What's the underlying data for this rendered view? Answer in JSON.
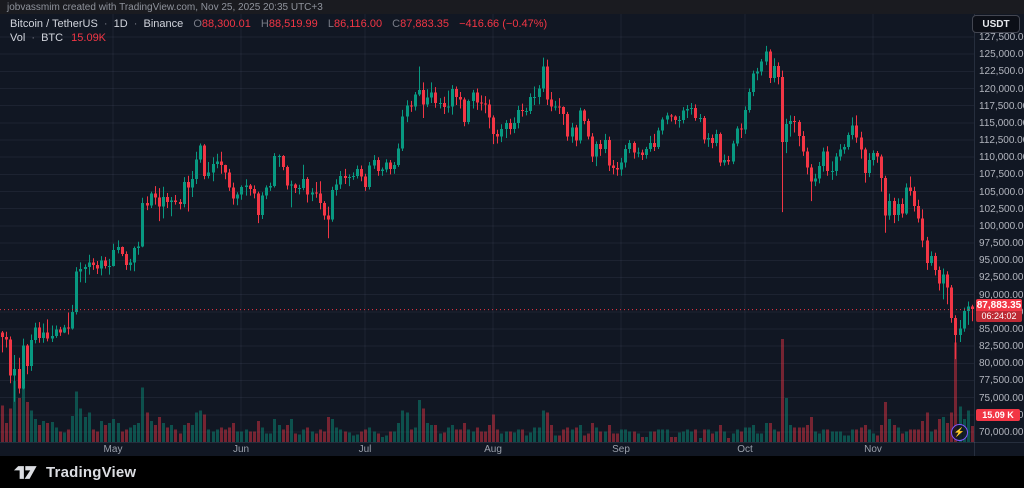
{
  "watermark": {
    "text": "jobvassmim created with TradingView.com, Nov 25, 2025 20:35 UTC+3"
  },
  "header": {
    "symbol": "Bitcoin / TetherUS",
    "dot": "·",
    "interval": "1D",
    "exchange": "Binance",
    "o_label": "O",
    "open": "88,300.01",
    "h_label": "H",
    "high": "88,519.99",
    "l_label": "L",
    "low": "86,116.00",
    "c_label": "C",
    "close": "87,883.35",
    "change": "−416.66 (−0.47%)",
    "vol_label": "Vol",
    "vol_unit": "BTC",
    "vol_value": "15.09K"
  },
  "axis": {
    "currency_button": "USDT",
    "price_labels": [
      "127,500.00",
      "125,000.00",
      "122,500.00",
      "120,000.00",
      "117,500.00",
      "115,000.00",
      "112,500.00",
      "110,000.00",
      "107,500.00",
      "105,000.00",
      "102,500.00",
      "100,000.00",
      "97,500.00",
      "95,000.00",
      "92,500.00",
      "90,000.00",
      "87,500.00",
      "85,000.00",
      "82,500.00",
      "80,000.00",
      "77,500.00",
      "75,000.00",
      "72,500.00",
      "70,000.00"
    ],
    "price_max": 127500,
    "price_min": 70000,
    "price_step": 2500,
    "last_price_label": "87,883.35",
    "countdown": "06:24:02",
    "volume_badge": "15.09 K"
  },
  "time_axis": {
    "months": [
      {
        "label": "May",
        "index": 27
      },
      {
        "label": "Jun",
        "index": 58
      },
      {
        "label": "Jul",
        "index": 88
      },
      {
        "label": "Aug",
        "index": 119
      },
      {
        "label": "Sep",
        "index": 150
      },
      {
        "label": "Oct",
        "index": 180
      },
      {
        "label": "Nov",
        "index": 211
      }
    ]
  },
  "footer": {
    "logo_text": "TradingView"
  },
  "icons": {
    "lightning": "⚡"
  },
  "colors": {
    "background": "#111723",
    "watermark_bar": "#1a1b20",
    "footer": "#000000",
    "up": "#089981",
    "down": "#f23645",
    "vol_up": "rgba(8,153,129,0.45)",
    "vol_down": "rgba(242,54,69,0.45)",
    "grid": "rgba(150,165,200,0.09)",
    "axis_border": "rgba(150,165,200,0.16)",
    "axis_text": "#b2b5be",
    "badge": "#f23645"
  },
  "chart_data": {
    "type": "candlestick",
    "title": "Bitcoin / TetherUS · 1D · Binance",
    "symbol": "BTCUSDT",
    "timeframe": "1D",
    "start_date": "2025-04-04",
    "end_date": "2025-11-25",
    "unit": "thousand USDT",
    "volume_unit": "K BTC",
    "price_axis_range": [
      70.0,
      127.5
    ],
    "last_price": 87.88335,
    "last_change": -0.41666,
    "last_change_pct": -0.47,
    "columns": [
      "close",
      "high",
      "low",
      "volume_kBTC"
    ],
    "open_equals_prev_close": true,
    "first_open": 84.5,
    "candles": [
      [
        83.8,
        84.7,
        81.6,
        35
      ],
      [
        83.5,
        84.6,
        82.3,
        18
      ],
      [
        78.2,
        83.9,
        77.1,
        32
      ],
      [
        79.2,
        81.2,
        74.4,
        58
      ],
      [
        76.3,
        80.8,
        75.6,
        42
      ],
      [
        82.6,
        83.6,
        76.2,
        55
      ],
      [
        79.6,
        82.8,
        78.4,
        38
      ],
      [
        83.4,
        84.2,
        78.9,
        30
      ],
      [
        85.2,
        85.9,
        82.9,
        22
      ],
      [
        83.7,
        86.0,
        83.0,
        16
      ],
      [
        84.5,
        85.8,
        83.0,
        20
      ],
      [
        83.6,
        86.4,
        83.2,
        18
      ],
      [
        84.0,
        85.5,
        83.1,
        19
      ],
      [
        84.9,
        85.5,
        83.7,
        14
      ],
      [
        84.5,
        85.3,
        84.0,
        10
      ],
      [
        85.2,
        85.6,
        84.4,
        9
      ],
      [
        85.1,
        87.4,
        84.2,
        12
      ],
      [
        87.5,
        88.5,
        84.9,
        25
      ],
      [
        93.4,
        94.0,
        87.1,
        48
      ],
      [
        93.7,
        94.7,
        91.8,
        32
      ],
      [
        94.0,
        94.4,
        91.7,
        24
      ],
      [
        94.7,
        95.8,
        92.9,
        28
      ],
      [
        94.3,
        95.3,
        93.6,
        12
      ],
      [
        93.8,
        94.9,
        93.0,
        10
      ],
      [
        95.0,
        95.6,
        92.8,
        20
      ],
      [
        94.2,
        95.5,
        93.8,
        16
      ],
      [
        94.2,
        95.2,
        92.9,
        18
      ],
      [
        96.5,
        97.4,
        94.1,
        22
      ],
      [
        96.9,
        97.9,
        96.0,
        18
      ],
      [
        95.9,
        97.0,
        95.6,
        10
      ],
      [
        94.3,
        96.3,
        93.6,
        12
      ],
      [
        94.7,
        95.2,
        93.5,
        14
      ],
      [
        96.8,
        97.0,
        93.4,
        16
      ],
      [
        97.0,
        97.7,
        95.8,
        18
      ],
      [
        103.3,
        104.1,
        96.9,
        52
      ],
      [
        103.0,
        104.3,
        102.3,
        28
      ],
      [
        104.7,
        105.0,
        102.6,
        20
      ],
      [
        104.1,
        105.8,
        103.1,
        16
      ],
      [
        102.8,
        105.5,
        100.7,
        24
      ],
      [
        104.2,
        105.7,
        101.1,
        18
      ],
      [
        103.5,
        104.8,
        102.6,
        14
      ],
      [
        103.7,
        104.2,
        101.4,
        16
      ],
      [
        103.5,
        104.5,
        103.1,
        12
      ],
      [
        103.2,
        103.9,
        102.4,
        8
      ],
      [
        106.4,
        107.1,
        102.7,
        16
      ],
      [
        105.6,
        107.3,
        102.1,
        18
      ],
      [
        106.8,
        108.0,
        104.2,
        16
      ],
      [
        109.7,
        110.8,
        106.1,
        28
      ],
      [
        111.7,
        112.0,
        109.2,
        30
      ],
      [
        107.3,
        111.9,
        106.8,
        26
      ],
      [
        107.8,
        109.3,
        106.9,
        12
      ],
      [
        109.0,
        110.0,
        106.5,
        10
      ],
      [
        109.4,
        110.5,
        108.4,
        12
      ],
      [
        108.9,
        110.8,
        107.6,
        14
      ],
      [
        107.8,
        108.9,
        106.8,
        12
      ],
      [
        105.6,
        108.3,
        105.1,
        14
      ],
      [
        104.0,
        106.3,
        103.1,
        18
      ],
      [
        104.6,
        104.9,
        103.0,
        10
      ],
      [
        105.7,
        105.9,
        103.8,
        10
      ],
      [
        105.9,
        106.8,
        104.4,
        12
      ],
      [
        105.4,
        106.1,
        104.4,
        10
      ],
      [
        104.7,
        105.9,
        104.0,
        10
      ],
      [
        101.6,
        105.0,
        100.4,
        20
      ],
      [
        104.4,
        104.9,
        101.0,
        14
      ],
      [
        105.6,
        105.9,
        103.9,
        8
      ],
      [
        105.8,
        106.3,
        105.1,
        8
      ],
      [
        110.2,
        110.6,
        105.6,
        22
      ],
      [
        110.2,
        110.4,
        108.6,
        16
      ],
      [
        108.6,
        110.3,
        108.1,
        12
      ],
      [
        105.9,
        108.8,
        105.3,
        16
      ],
      [
        106.0,
        106.6,
        102.7,
        22
      ],
      [
        105.5,
        106.2,
        104.8,
        8
      ],
      [
        105.5,
        106.0,
        104.6,
        7
      ],
      [
        106.8,
        108.9,
        105.2,
        12
      ],
      [
        104.6,
        107.1,
        103.4,
        14
      ],
      [
        104.9,
        105.5,
        103.6,
        10
      ],
      [
        104.7,
        106.4,
        104.1,
        8
      ],
      [
        103.3,
        106.5,
        102.4,
        12
      ],
      [
        101.5,
        103.6,
        100.9,
        10
      ],
      [
        100.9,
        102.8,
        98.2,
        24
      ],
      [
        105.2,
        105.7,
        100.6,
        22
      ],
      [
        106.0,
        106.8,
        104.4,
        14
      ],
      [
        107.3,
        108.0,
        105.4,
        12
      ],
      [
        107.0,
        108.3,
        106.1,
        10
      ],
      [
        107.1,
        107.5,
        105.8,
        9
      ],
      [
        107.3,
        107.8,
        106.7,
        6
      ],
      [
        108.3,
        108.8,
        106.9,
        7
      ],
      [
        107.2,
        108.8,
        106.5,
        10
      ],
      [
        105.7,
        107.6,
        105.1,
        12
      ],
      [
        108.8,
        109.3,
        105.3,
        14
      ],
      [
        109.6,
        110.3,
        108.3,
        10
      ],
      [
        108.0,
        110.0,
        107.3,
        8
      ],
      [
        108.2,
        108.5,
        107.3,
        5
      ],
      [
        109.2,
        109.7,
        107.8,
        6
      ],
      [
        108.3,
        109.6,
        107.5,
        10
      ],
      [
        108.9,
        109.3,
        107.6,
        10
      ],
      [
        111.3,
        112.0,
        108.6,
        18
      ],
      [
        115.9,
        116.9,
        110.9,
        30
      ],
      [
        117.5,
        118.3,
        115.1,
        28
      ],
      [
        117.4,
        118.2,
        116.6,
        12
      ],
      [
        119.1,
        119.5,
        116.8,
        14
      ],
      [
        119.8,
        123.2,
        118.9,
        40
      ],
      [
        117.7,
        120.9,
        115.7,
        32
      ],
      [
        118.7,
        119.9,
        117.3,
        18
      ],
      [
        119.4,
        120.9,
        117.9,
        16
      ],
      [
        117.9,
        120.2,
        117.2,
        16
      ],
      [
        117.9,
        118.6,
        117.1,
        8
      ],
      [
        117.3,
        118.8,
        116.3,
        9
      ],
      [
        117.4,
        119.7,
        116.5,
        14
      ],
      [
        119.9,
        120.5,
        116.2,
        16
      ],
      [
        118.8,
        120.3,
        117.6,
        12
      ],
      [
        118.4,
        119.5,
        117.1,
        12
      ],
      [
        115.1,
        118.7,
        114.5,
        18
      ],
      [
        118.2,
        118.4,
        114.8,
        12
      ],
      [
        119.4,
        119.8,
        117.1,
        10
      ],
      [
        118.0,
        120.0,
        116.9,
        14
      ],
      [
        117.8,
        119.0,
        116.8,
        10
      ],
      [
        117.7,
        118.9,
        116.4,
        10
      ],
      [
        115.8,
        118.4,
        114.2,
        16
      ],
      [
        113.4,
        116.1,
        111.9,
        26
      ],
      [
        113.0,
        114.0,
        112.0,
        12
      ],
      [
        114.1,
        114.8,
        112.2,
        8
      ],
      [
        115.0,
        115.4,
        112.8,
        10
      ],
      [
        114.1,
        115.6,
        113.3,
        10
      ],
      [
        115.0,
        115.8,
        113.5,
        9
      ],
      [
        116.9,
        117.5,
        114.2,
        12
      ],
      [
        116.7,
        117.8,
        115.9,
        12
      ],
      [
        116.7,
        117.2,
        116.1,
        6
      ],
      [
        118.8,
        119.3,
        116.3,
        9
      ],
      [
        118.8,
        120.3,
        117.6,
        14
      ],
      [
        120.0,
        120.5,
        117.7,
        14
      ],
      [
        123.2,
        124.5,
        119.5,
        30
      ],
      [
        118.4,
        124.2,
        117.6,
        28
      ],
      [
        117.4,
        119.5,
        116.7,
        16
      ],
      [
        117.4,
        118.2,
        116.8,
        6
      ],
      [
        117.3,
        118.6,
        116.3,
        6
      ],
      [
        116.3,
        117.4,
        114.7,
        12
      ],
      [
        113.0,
        116.6,
        112.4,
        14
      ],
      [
        114.3,
        115.0,
        112.1,
        12
      ],
      [
        112.4,
        114.7,
        111.6,
        14
      ],
      [
        116.8,
        117.2,
        112.0,
        16
      ],
      [
        115.3,
        117.0,
        114.8,
        6
      ],
      [
        113.0,
        115.6,
        112.6,
        8
      ],
      [
        110.1,
        113.5,
        109.3,
        18
      ],
      [
        111.9,
        112.3,
        108.7,
        14
      ],
      [
        111.2,
        112.5,
        110.2,
        10
      ],
      [
        112.5,
        113.4,
        110.6,
        10
      ],
      [
        108.8,
        113.0,
        108.0,
        16
      ],
      [
        108.4,
        109.6,
        107.5,
        8
      ],
      [
        108.2,
        109.3,
        107.3,
        8
      ],
      [
        109.2,
        109.9,
        107.3,
        12
      ],
      [
        111.2,
        111.8,
        108.5,
        12
      ],
      [
        112.1,
        112.5,
        110.6,
        10
      ],
      [
        110.7,
        112.3,
        109.8,
        10
      ],
      [
        110.7,
        111.4,
        110.0,
        8
      ],
      [
        110.3,
        111.1,
        109.6,
        5
      ],
      [
        111.2,
        111.5,
        109.8,
        5
      ],
      [
        112.1,
        113.1,
        110.8,
        10
      ],
      [
        111.5,
        113.4,
        110.9,
        10
      ],
      [
        113.9,
        114.3,
        111.2,
        12
      ],
      [
        115.5,
        115.8,
        113.3,
        12
      ],
      [
        116.1,
        116.5,
        114.8,
        12
      ],
      [
        115.9,
        116.3,
        115.2,
        5
      ],
      [
        115.4,
        116.1,
        114.8,
        5
      ],
      [
        115.4,
        116.0,
        114.3,
        9
      ],
      [
        116.8,
        117.3,
        114.9,
        10
      ],
      [
        117.0,
        117.6,
        115.7,
        12
      ],
      [
        117.2,
        117.9,
        116.2,
        10
      ],
      [
        115.7,
        117.7,
        115.3,
        12
      ],
      [
        115.7,
        116.3,
        115.1,
        4
      ],
      [
        112.6,
        116.0,
        112.0,
        12
      ],
      [
        112.8,
        113.5,
        111.5,
        12
      ],
      [
        112.1,
        113.3,
        111.3,
        8
      ],
      [
        113.4,
        114.0,
        111.6,
        10
      ],
      [
        109.2,
        113.6,
        108.7,
        16
      ],
      [
        109.6,
        110.4,
        108.8,
        10
      ],
      [
        109.4,
        110.2,
        108.9,
        4
      ],
      [
        112.0,
        112.4,
        109.0,
        8
      ],
      [
        114.2,
        114.5,
        111.6,
        12
      ],
      [
        114.0,
        114.9,
        112.8,
        10
      ],
      [
        116.9,
        117.4,
        113.4,
        14
      ],
      [
        119.5,
        120.0,
        116.5,
        14
      ],
      [
        122.2,
        122.6,
        118.9,
        16
      ],
      [
        122.5,
        123.0,
        121.2,
        8
      ],
      [
        123.9,
        124.3,
        121.9,
        8
      ],
      [
        125.4,
        126.2,
        123.4,
        18
      ],
      [
        121.5,
        125.7,
        120.8,
        18
      ],
      [
        123.3,
        124.4,
        120.9,
        12
      ],
      [
        121.7,
        123.8,
        120.6,
        10
      ],
      [
        112.2,
        122.6,
        102.0,
        98
      ],
      [
        114.8,
        115.6,
        110.6,
        42
      ],
      [
        115.3,
        116.1,
        113.0,
        16
      ],
      [
        115.1,
        116.0,
        113.6,
        14
      ],
      [
        113.1,
        115.4,
        111.6,
        14
      ],
      [
        110.8,
        113.8,
        110.2,
        14
      ],
      [
        108.5,
        111.4,
        107.5,
        16
      ],
      [
        106.5,
        109.0,
        103.6,
        24
      ],
      [
        106.9,
        107.6,
        105.8,
        10
      ],
      [
        108.7,
        109.3,
        106.2,
        8
      ],
      [
        110.8,
        111.4,
        107.9,
        12
      ],
      [
        108.0,
        111.6,
        107.3,
        12
      ],
      [
        108.0,
        109.4,
        106.7,
        10
      ],
      [
        110.1,
        110.6,
        107.3,
        10
      ],
      [
        111.1,
        111.9,
        109.5,
        10
      ],
      [
        111.5,
        111.9,
        110.5,
        6
      ],
      [
        113.2,
        113.6,
        111.1,
        6
      ],
      [
        114.6,
        115.8,
        112.6,
        12
      ],
      [
        112.9,
        116.1,
        112.1,
        12
      ],
      [
        111.1,
        113.7,
        109.8,
        14
      ],
      [
        107.7,
        111.4,
        106.3,
        16
      ],
      [
        109.6,
        110.6,
        107.1,
        12
      ],
      [
        110.6,
        111.0,
        108.8,
        8
      ],
      [
        110.1,
        110.9,
        109.2,
        6
      ],
      [
        107.0,
        110.4,
        105.0,
        16
      ],
      [
        101.5,
        107.3,
        99.0,
        38
      ],
      [
        103.6,
        104.7,
        100.9,
        22
      ],
      [
        101.6,
        104.1,
        100.4,
        16
      ],
      [
        103.2,
        104.0,
        100.7,
        14
      ],
      [
        101.8,
        104.0,
        101.2,
        8
      ],
      [
        105.6,
        106.2,
        101.6,
        10
      ],
      [
        105.1,
        107.2,
        104.4,
        12
      ],
      [
        102.9,
        105.7,
        102.1,
        12
      ],
      [
        101.1,
        103.8,
        100.5,
        12
      ],
      [
        97.9,
        102.4,
        96.9,
        20
      ],
      [
        94.6,
        98.4,
        93.6,
        28
      ],
      [
        95.6,
        96.3,
        94.2,
        10
      ],
      [
        93.6,
        96.1,
        92.8,
        12
      ],
      [
        91.6,
        94.1,
        90.6,
        22
      ],
      [
        92.9,
        93.8,
        89.3,
        24
      ],
      [
        91.0,
        93.4,
        88.6,
        18
      ],
      [
        86.6,
        91.4,
        85.9,
        28
      ],
      [
        84.1,
        87.0,
        80.6,
        95
      ],
      [
        85.1,
        86.3,
        83.1,
        34
      ],
      [
        87.6,
        88.1,
        84.6,
        22
      ],
      [
        88.3,
        89.0,
        85.6,
        30
      ],
      [
        87.88,
        88.52,
        86.12,
        15.09
      ]
    ]
  }
}
